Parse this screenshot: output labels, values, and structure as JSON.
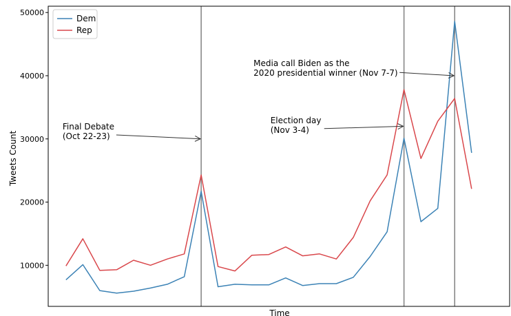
{
  "chart_data": {
    "type": "line",
    "title": "",
    "xlabel": "Time",
    "ylabel": "Tweets Count",
    "x": [
      0,
      1,
      2,
      3,
      4,
      5,
      6,
      7,
      8,
      9,
      10,
      11,
      12,
      13,
      14,
      15,
      16,
      17,
      18,
      19,
      20,
      21,
      22,
      23,
      24,
      25
    ],
    "xlim": [
      -1.05,
      26.25
    ],
    "ylim": [
      3500,
      51000
    ],
    "yticks": [
      10000,
      20000,
      30000,
      40000,
      50000
    ],
    "grid": false,
    "legend": "top-left",
    "series": [
      {
        "name": "Dem",
        "color": "#3b82b5",
        "values": [
          7700,
          10100,
          6000,
          5600,
          5900,
          6400,
          7000,
          8200,
          21700,
          6600,
          7000,
          6900,
          6900,
          8000,
          6800,
          7100,
          7100,
          8100,
          11400,
          15300,
          30100,
          16900,
          19000,
          48600,
          27800,
          null
        ]
      },
      {
        "name": "Rep",
        "color": "#d9474b",
        "values": [
          9900,
          14200,
          9200,
          9300,
          10800,
          10000,
          11000,
          11800,
          24300,
          9800,
          9100,
          11600,
          11700,
          12900,
          11500,
          11800,
          11000,
          14400,
          20200,
          24300,
          37800,
          26900,
          32800,
          36400,
          22100,
          null
        ]
      }
    ],
    "vlines": [
      8,
      20,
      23
    ],
    "annotations": [
      {
        "text_lines": [
          "Final Debate",
          "(Oct 22-23)"
        ],
        "text_xy": [
          -0.2,
          31500
        ],
        "arrow_to": [
          8,
          30000
        ]
      },
      {
        "text_lines": [
          "Election day",
          "(Nov 3-4)"
        ],
        "text_xy": [
          12.1,
          32500
        ],
        "arrow_to": [
          20,
          32000
        ]
      },
      {
        "text_lines": [
          "Media call Biden as the",
          "2020 presidential winner (Nov 7-7)"
        ],
        "text_xy": [
          11.1,
          41500
        ],
        "arrow_to": [
          23,
          40000
        ]
      }
    ]
  }
}
